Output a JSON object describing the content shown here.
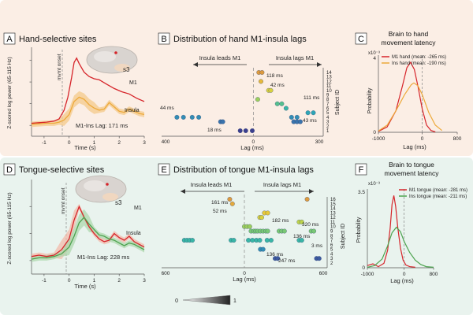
{
  "colors": {
    "hand_row_bg": "#fbeee5",
    "tongue_row_bg": "#e9f3ee",
    "m1_red": "#d6242a",
    "insula_orange": "#eda93a",
    "insula_green": "#4da34f",
    "shade_orange": "#f4c98a",
    "shade_green": "#a9d6a9"
  },
  "labels": {
    "panelA": "A",
    "panelB": "B",
    "panelC": "C",
    "panelD": "D",
    "panelE": "E",
    "panelF": "F",
    "titleA": "Hand-selective sites",
    "titleB": "Distribution of hand M1-insula lags",
    "titleC1": "Brain to hand",
    "titleC2": "movement latency",
    "titleD": "Tongue-selective sites",
    "titleE": "Distribution of tongue M1-insula lags",
    "titleF1": "Brain to tongue",
    "titleF2": "movement latency",
    "ylabelA": "Z-scored log power (65-115 Hz)",
    "ylabelD": "Z-scored log power (65-115 Hz)",
    "xlabelA": "Time (s)",
    "xlabelD": "Time (s)",
    "mvmtA": "mvmt onset",
    "mvmtD": "mvmt onset",
    "m1A": "M1",
    "insA": "Insula",
    "m1D": "M1",
    "insD": "Insula",
    "s3A": "s3",
    "s3D": "s3",
    "lagA": "M1-Ins Lag: 171 ms",
    "lagD": "M1-Ins Lag: 228 ms",
    "leadsB": "Insula leads M1",
    "lagsB": "Insula lags M1",
    "leadsE": "Insula leads M1",
    "lagsE": "Insula lags M1",
    "xlabelB": "Lag (ms)",
    "xlabelE": "Lag (ms)",
    "ylabelB": "Subject ID",
    "ylabelE": "Subject ID",
    "ylabelC": "Probability",
    "ylabelF": "Probability",
    "xlabelC": "Lag (ms)",
    "xlabelF": "Lag (ms)",
    "expC": "x10⁻³",
    "expF": "x10⁻³",
    "legendC1": "M1 hand (mean: -265 ms)",
    "legendC2": "Ins hand (mean: -190 ms)",
    "legendF1": "M1 tongue (mean: -281 ms)",
    "legendF2": "Ins tongue (mean: -211 ms)",
    "cbar0": "0",
    "cbar1": "1"
  },
  "chart_data": [
    {
      "id": "A",
      "type": "line",
      "title": "Hand-selective sites",
      "xlabel": "Time (s)",
      "ylabel": "Z-scored log power (65-115 Hz)",
      "xlim": [
        -1.5,
        3
      ],
      "ylim": [
        -1,
        7.2
      ],
      "x_ticks": [
        "-1",
        "0",
        "1",
        "2",
        "3"
      ],
      "series": [
        {
          "name": "M1",
          "x": [
            -1.5,
            -1.2,
            -0.9,
            -0.6,
            -0.4,
            -0.2,
            -0.05,
            0.1,
            0.2,
            0.3,
            0.4,
            0.6,
            0.8,
            1.0,
            1.2,
            1.5,
            1.8,
            2.1,
            2.4,
            2.7,
            3.0
          ],
          "y": [
            0.2,
            0.25,
            0.3,
            0.4,
            0.6,
            1.4,
            2.6,
            4.4,
            5.8,
            6.2,
            5.7,
            4.9,
            4.5,
            4.3,
            4.2,
            3.8,
            3.4,
            3.1,
            2.9,
            2.5,
            2.2
          ]
        },
        {
          "name": "Insula",
          "x": [
            -1.5,
            -1.2,
            -0.9,
            -0.6,
            -0.4,
            -0.2,
            0.0,
            0.2,
            0.4,
            0.6,
            0.8,
            1.0,
            1.2,
            1.4,
            1.6,
            1.8,
            2.0,
            2.2,
            2.4,
            2.6,
            2.8,
            3.0
          ],
          "y": [
            0.1,
            0.15,
            0.2,
            0.2,
            0.3,
            0.5,
            1.0,
            2.2,
            2.6,
            2.4,
            1.9,
            1.6,
            1.4,
            1.5,
            2.1,
            1.7,
            1.3,
            1.2,
            1.5,
            1.3,
            1.1,
            1.0
          ]
        }
      ],
      "annotation": "M1-Ins Lag: 171 ms"
    },
    {
      "id": "B",
      "type": "scatter",
      "title": "Distribution of hand M1-insula lags",
      "xlabel": "Lag (ms)",
      "ylabel": "Subject ID",
      "xlim": [
        -420,
        320
      ],
      "x_ticks": [
        400,
        0,
        300
      ],
      "y_ticks": [
        1,
        2,
        3,
        4,
        5,
        6,
        7,
        8,
        9,
        10,
        11,
        12,
        13,
        14
      ],
      "subjects_left_to_right_y": {
        "14": "118 ms",
        "7": "42 ms",
        "5": "111 ms",
        "4": "44 ms",
        "2": "43 ms",
        "1": "18 ms"
      },
      "points": [
        {
          "lag": 25,
          "row": 14
        },
        {
          "lag": 40,
          "row": 14
        },
        {
          "lag": 35,
          "row": 12
        },
        {
          "lag": 70,
          "row": 10
        },
        {
          "lag": 80,
          "row": 10
        },
        {
          "lag": 20,
          "row": 8
        },
        {
          "lag": 110,
          "row": 7
        },
        {
          "lag": 130,
          "row": 7
        },
        {
          "lag": 150,
          "row": 6
        },
        {
          "lag": 250,
          "row": 5
        },
        {
          "lag": 275,
          "row": 5
        },
        {
          "lag": -350,
          "row": 4
        },
        {
          "lag": -320,
          "row": 4
        },
        {
          "lag": -280,
          "row": 4
        },
        {
          "lag": -250,
          "row": 4
        },
        {
          "lag": 175,
          "row": 4
        },
        {
          "lag": 200,
          "row": 4
        },
        {
          "lag": -150,
          "row": 3
        },
        {
          "lag": -140,
          "row": 3
        },
        {
          "lag": 185,
          "row": 3
        },
        {
          "lag": 200,
          "row": 3
        },
        {
          "lag": 215,
          "row": 3
        },
        {
          "lag": -60,
          "row": 1
        },
        {
          "lag": -35,
          "row": 1
        },
        {
          "lag": -5,
          "row": 1
        }
      ],
      "point_labels": [
        "118 ms",
        "42 ms",
        "111 ms",
        "44 ms",
        "43 ms",
        "18 ms"
      ]
    },
    {
      "id": "C",
      "type": "line",
      "title": "Brain to hand movement latency",
      "xlabel": "Lag (ms)",
      "ylabel": "Probability",
      "y_scale": "x10⁻³",
      "xlim": [
        -1000,
        800
      ],
      "x_ticks": [
        "-1000",
        "0",
        "800"
      ],
      "series": [
        {
          "name": "M1 hand (mean: -265 ms)",
          "x": [
            -1000,
            -800,
            -600,
            -450,
            -350,
            -265,
            -180,
            -100,
            0,
            100,
            200,
            300
          ],
          "y": [
            0.05,
            0.3,
            1.2,
            2.6,
            3.6,
            3.9,
            3.5,
            2.6,
            1.3,
            0.4,
            0.1,
            0.02
          ]
        },
        {
          "name": "Ins hand (mean: -190 ms)",
          "x": [
            -1000,
            -800,
            -600,
            -400,
            -250,
            -190,
            -100,
            0,
            150,
            300,
            450
          ],
          "y": [
            0.08,
            0.4,
            1.2,
            2.1,
            2.65,
            2.75,
            2.6,
            2.1,
            1.1,
            0.4,
            0.1
          ]
        }
      ]
    },
    {
      "id": "D",
      "type": "line",
      "title": "Tongue-selective sites",
      "xlabel": "Time (s)",
      "ylabel": "Z-scored log power (65-115 Hz)",
      "xlim": [
        -1.5,
        3
      ],
      "ylim": [
        -1,
        6
      ],
      "x_ticks": [
        "-1",
        "0",
        "1",
        "2",
        "3"
      ],
      "series": [
        {
          "name": "M1",
          "x": [
            -1.5,
            -1.2,
            -0.9,
            -0.6,
            -0.3,
            0.0,
            0.2,
            0.4,
            0.6,
            0.8,
            1.0,
            1.2,
            1.4,
            1.6,
            1.8,
            2.0,
            2.2,
            2.4,
            2.6,
            2.8,
            3.0
          ],
          "y": [
            0.3,
            0.4,
            0.3,
            0.4,
            0.8,
            1.6,
            3.0,
            4.0,
            3.2,
            2.5,
            2.0,
            1.6,
            1.4,
            1.5,
            2.0,
            1.7,
            1.5,
            1.8,
            1.4,
            1.2,
            1.0
          ]
        },
        {
          "name": "Insula",
          "x": [
            -1.5,
            -1.2,
            -0.9,
            -0.6,
            -0.3,
            0.0,
            0.2,
            0.4,
            0.6,
            0.8,
            1.0,
            1.2,
            1.4,
            1.6,
            1.8,
            2.0,
            2.2,
            2.4,
            2.6,
            2.8,
            3.0
          ],
          "y": [
            0.1,
            0.2,
            0.2,
            0.3,
            0.5,
            1.0,
            1.8,
            2.8,
            3.2,
            2.7,
            2.3,
            1.9,
            1.8,
            1.6,
            1.5,
            1.3,
            1.1,
            1.3,
            1.2,
            1.0,
            0.8
          ]
        }
      ],
      "annotation": "M1-Ins Lag: 228 ms"
    },
    {
      "id": "E",
      "type": "scatter",
      "title": "Distribution of tongue M1-insula lags",
      "xlabel": "Lag (ms)",
      "ylabel": "Subject ID",
      "xlim": [
        -620,
        620
      ],
      "x_ticks": [
        600,
        0,
        600
      ],
      "y_ticks": [
        2,
        3,
        4,
        5,
        6,
        7,
        8,
        9,
        10,
        11,
        12,
        13,
        14,
        15,
        16
      ],
      "points": [
        {
          "lag": -110,
          "row": 16
        },
        {
          "lag": 470,
          "row": 16
        },
        {
          "lag": -90,
          "row": 15
        },
        {
          "lag": 150,
          "row": 13
        },
        {
          "lag": 175,
          "row": 13
        },
        {
          "lag": 115,
          "row": 12
        },
        {
          "lag": 130,
          "row": 12
        },
        {
          "lag": 410,
          "row": 11
        },
        {
          "lag": 430,
          "row": 11
        },
        {
          "lag": 0,
          "row": 10
        },
        {
          "lag": 20,
          "row": 10
        },
        {
          "lag": 40,
          "row": 10
        },
        {
          "lag": 50,
          "row": 9
        },
        {
          "lag": 70,
          "row": 9
        },
        {
          "lag": 85,
          "row": 9
        },
        {
          "lag": 100,
          "row": 9
        },
        {
          "lag": 120,
          "row": 9
        },
        {
          "lag": 140,
          "row": 9
        },
        {
          "lag": 160,
          "row": 9
        },
        {
          "lag": 175,
          "row": 9
        },
        {
          "lag": 260,
          "row": 9
        },
        {
          "lag": 280,
          "row": 9
        },
        {
          "lag": 300,
          "row": 9
        },
        {
          "lag": 500,
          "row": 9
        },
        {
          "lag": 520,
          "row": 9
        },
        {
          "lag": -450,
          "row": 7
        },
        {
          "lag": -430,
          "row": 7
        },
        {
          "lag": -410,
          "row": 7
        },
        {
          "lag": -390,
          "row": 7
        },
        {
          "lag": -100,
          "row": 7
        },
        {
          "lag": -80,
          "row": 7
        },
        {
          "lag": 30,
          "row": 7
        },
        {
          "lag": 60,
          "row": 7
        },
        {
          "lag": 90,
          "row": 7
        },
        {
          "lag": 115,
          "row": 7
        },
        {
          "lag": 170,
          "row": 7
        },
        {
          "lag": 200,
          "row": 7
        },
        {
          "lag": 410,
          "row": 7
        },
        {
          "lag": 430,
          "row": 7
        },
        {
          "lag": 120,
          "row": 5
        },
        {
          "lag": 140,
          "row": 5
        },
        {
          "lag": 230,
          "row": 3
        },
        {
          "lag": 250,
          "row": 3
        },
        {
          "lag": 540,
          "row": 3
        },
        {
          "lag": 560,
          "row": 3
        }
      ],
      "point_labels": [
        "161 ms",
        "52 ms",
        "182 ms",
        "320 ms",
        "136 ms",
        "3 ms",
        "136 ms",
        "247 ms"
      ],
      "colorbar": [
        0,
        1
      ]
    },
    {
      "id": "F",
      "type": "line",
      "title": "Brain to tongue movement latency",
      "xlabel": "Lag (ms)",
      "ylabel": "Probability",
      "y_scale": "x10⁻³",
      "xlim": [
        -1000,
        800
      ],
      "x_ticks": [
        "-1000",
        "0",
        "800"
      ],
      "series": [
        {
          "name": "M1 tongue (mean: -281 ms)",
          "x": [
            -1000,
            -850,
            -700,
            -550,
            -450,
            -380,
            -330,
            -281,
            -230,
            -170,
            -100,
            -30,
            50,
            150,
            300
          ],
          "y": [
            0.1,
            0.18,
            0.05,
            0.2,
            0.8,
            1.8,
            2.9,
            3.3,
            2.8,
            1.8,
            0.9,
            0.35,
            0.12,
            0.05,
            0.02
          ]
        },
        {
          "name": "Ins tongue (mean: -211 ms)",
          "x": [
            -1000,
            -800,
            -600,
            -450,
            -330,
            -211,
            -100,
            0,
            150,
            300,
            450,
            600,
            800
          ],
          "y": [
            0.02,
            0.1,
            0.4,
            1.0,
            1.6,
            1.85,
            1.65,
            1.2,
            0.7,
            0.35,
            0.15,
            0.05,
            0.02
          ]
        }
      ]
    }
  ]
}
